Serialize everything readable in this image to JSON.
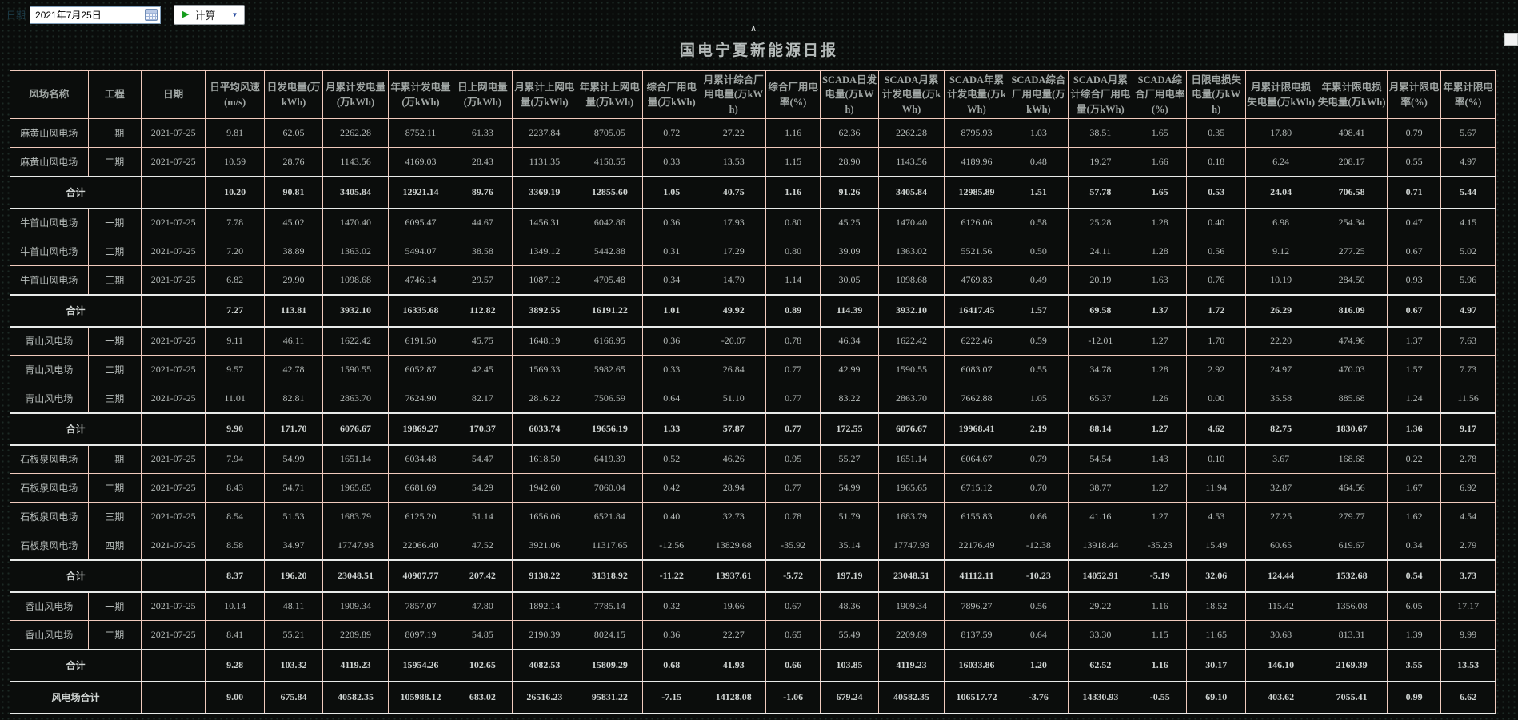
{
  "toolbar": {
    "date_label": "日期",
    "date_value": "2021年7月25日",
    "calc_label": "计算",
    "play_glyph": "▶",
    "dropdown_glyph": "▼",
    "collapse_glyph": "∧"
  },
  "title": "国电宁夏新能源日报",
  "colors": {
    "table_border": "#f0cabd",
    "subtotal_border": "#e8eae9",
    "cell_text": "#b4bab8",
    "accent_green": "#149c1c",
    "background": "#0a0c0b"
  },
  "table": {
    "columns": [
      "风场名称",
      "工程",
      "日期",
      "日平均风速(m/s)",
      "日发电量(万kWh)",
      "月累计发电量(万kWh)",
      "年累计发电量(万kWh)",
      "日上网电量(万kWh)",
      "月累计上网电量(万kWh)",
      "年累计上网电量(万kWh)",
      "综合厂用电量(万kWh)",
      "月累计综合厂用电量(万kWh)",
      "综合厂用电率(%)",
      "SCADA日发电量(万kWh)",
      "SCADA月累计发电量(万kWh)",
      "SCADA年累计发电量(万kWh)",
      "SCADA综合厂用电量(万kWh)",
      "SCADA月累计综合厂用电量(万kWh)",
      "SCADA综合厂用电率(%)",
      "日限电损失电量(万kWh)",
      "月累计限电损失电量(万kWh)",
      "年累计限电损失电量(万kWh)",
      "月累计限电率(%)",
      "年累计限电率(%)"
    ],
    "rows": [
      {
        "type": "data",
        "cells": [
          "麻黄山风电场",
          "一期",
          "2021-07-25",
          "9.81",
          "62.05",
          "2262.28",
          "8752.11",
          "61.33",
          "2237.84",
          "8705.05",
          "0.72",
          "27.22",
          "1.16",
          "62.36",
          "2262.28",
          "8795.93",
          "1.03",
          "38.51",
          "1.65",
          "0.35",
          "17.80",
          "498.41",
          "0.79",
          "5.67"
        ]
      },
      {
        "type": "data",
        "cells": [
          "麻黄山风电场",
          "二期",
          "2021-07-25",
          "10.59",
          "28.76",
          "1143.56",
          "4169.03",
          "28.43",
          "1131.35",
          "4150.55",
          "0.33",
          "13.53",
          "1.15",
          "28.90",
          "1143.56",
          "4189.96",
          "0.48",
          "19.27",
          "1.66",
          "0.18",
          "6.24",
          "208.17",
          "0.55",
          "4.97"
        ]
      },
      {
        "type": "subtotal",
        "cells": [
          "合计",
          "",
          "",
          "10.20",
          "90.81",
          "3405.84",
          "12921.14",
          "89.76",
          "3369.19",
          "12855.60",
          "1.05",
          "40.75",
          "1.16",
          "91.26",
          "3405.84",
          "12985.89",
          "1.51",
          "57.78",
          "1.65",
          "0.53",
          "24.04",
          "706.58",
          "0.71",
          "5.44"
        ]
      },
      {
        "type": "data",
        "cells": [
          "牛首山风电场",
          "一期",
          "2021-07-25",
          "7.78",
          "45.02",
          "1470.40",
          "6095.47",
          "44.67",
          "1456.31",
          "6042.86",
          "0.36",
          "17.93",
          "0.80",
          "45.25",
          "1470.40",
          "6126.06",
          "0.58",
          "25.28",
          "1.28",
          "0.40",
          "6.98",
          "254.34",
          "0.47",
          "4.15"
        ]
      },
      {
        "type": "data",
        "cells": [
          "牛首山风电场",
          "二期",
          "2021-07-25",
          "7.20",
          "38.89",
          "1363.02",
          "5494.07",
          "38.58",
          "1349.12",
          "5442.88",
          "0.31",
          "17.29",
          "0.80",
          "39.09",
          "1363.02",
          "5521.56",
          "0.50",
          "24.11",
          "1.28",
          "0.56",
          "9.12",
          "277.25",
          "0.67",
          "5.02"
        ]
      },
      {
        "type": "data",
        "cells": [
          "牛首山风电场",
          "三期",
          "2021-07-25",
          "6.82",
          "29.90",
          "1098.68",
          "4746.14",
          "29.57",
          "1087.12",
          "4705.48",
          "0.34",
          "14.70",
          "1.14",
          "30.05",
          "1098.68",
          "4769.83",
          "0.49",
          "20.19",
          "1.63",
          "0.76",
          "10.19",
          "284.50",
          "0.93",
          "5.96"
        ]
      },
      {
        "type": "subtotal",
        "cells": [
          "合计",
          "",
          "",
          "7.27",
          "113.81",
          "3932.10",
          "16335.68",
          "112.82",
          "3892.55",
          "16191.22",
          "1.01",
          "49.92",
          "0.89",
          "114.39",
          "3932.10",
          "16417.45",
          "1.57",
          "69.58",
          "1.37",
          "1.72",
          "26.29",
          "816.09",
          "0.67",
          "4.97"
        ]
      },
      {
        "type": "data",
        "cells": [
          "青山风电场",
          "一期",
          "2021-07-25",
          "9.11",
          "46.11",
          "1622.42",
          "6191.50",
          "45.75",
          "1648.19",
          "6166.95",
          "0.36",
          "-20.07",
          "0.78",
          "46.34",
          "1622.42",
          "6222.46",
          "0.59",
          "-12.01",
          "1.27",
          "1.70",
          "22.20",
          "474.96",
          "1.37",
          "7.63"
        ]
      },
      {
        "type": "data",
        "cells": [
          "青山风电场",
          "二期",
          "2021-07-25",
          "9.57",
          "42.78",
          "1590.55",
          "6052.87",
          "42.45",
          "1569.33",
          "5982.65",
          "0.33",
          "26.84",
          "0.77",
          "42.99",
          "1590.55",
          "6083.07",
          "0.55",
          "34.78",
          "1.28",
          "2.92",
          "24.97",
          "470.03",
          "1.57",
          "7.73"
        ]
      },
      {
        "type": "data",
        "cells": [
          "青山风电场",
          "三期",
          "2021-07-25",
          "11.01",
          "82.81",
          "2863.70",
          "7624.90",
          "82.17",
          "2816.22",
          "7506.59",
          "0.64",
          "51.10",
          "0.77",
          "83.22",
          "2863.70",
          "7662.88",
          "1.05",
          "65.37",
          "1.26",
          "0.00",
          "35.58",
          "885.68",
          "1.24",
          "11.56"
        ]
      },
      {
        "type": "subtotal",
        "cells": [
          "合计",
          "",
          "",
          "9.90",
          "171.70",
          "6076.67",
          "19869.27",
          "170.37",
          "6033.74",
          "19656.19",
          "1.33",
          "57.87",
          "0.77",
          "172.55",
          "6076.67",
          "19968.41",
          "2.19",
          "88.14",
          "1.27",
          "4.62",
          "82.75",
          "1830.67",
          "1.36",
          "9.17"
        ]
      },
      {
        "type": "data",
        "cells": [
          "石板泉风电场",
          "一期",
          "2021-07-25",
          "7.94",
          "54.99",
          "1651.14",
          "6034.48",
          "54.47",
          "1618.50",
          "6419.39",
          "0.52",
          "46.26",
          "0.95",
          "55.27",
          "1651.14",
          "6064.67",
          "0.79",
          "54.54",
          "1.43",
          "0.10",
          "3.67",
          "168.68",
          "0.22",
          "2.78"
        ]
      },
      {
        "type": "data",
        "cells": [
          "石板泉风电场",
          "二期",
          "2021-07-25",
          "8.43",
          "54.71",
          "1965.65",
          "6681.69",
          "54.29",
          "1942.60",
          "7060.04",
          "0.42",
          "28.94",
          "0.77",
          "54.99",
          "1965.65",
          "6715.12",
          "0.70",
          "38.77",
          "1.27",
          "11.94",
          "32.87",
          "464.56",
          "1.67",
          "6.92"
        ]
      },
      {
        "type": "data",
        "cells": [
          "石板泉风电场",
          "三期",
          "2021-07-25",
          "8.54",
          "51.53",
          "1683.79",
          "6125.20",
          "51.14",
          "1656.06",
          "6521.84",
          "0.40",
          "32.73",
          "0.78",
          "51.79",
          "1683.79",
          "6155.83",
          "0.66",
          "41.16",
          "1.27",
          "4.53",
          "27.25",
          "279.77",
          "1.62",
          "4.54"
        ]
      },
      {
        "type": "data",
        "cells": [
          "石板泉风电场",
          "四期",
          "2021-07-25",
          "8.58",
          "34.97",
          "17747.93",
          "22066.40",
          "47.52",
          "3921.06",
          "11317.65",
          "-12.56",
          "13829.68",
          "-35.92",
          "35.14",
          "17747.93",
          "22176.49",
          "-12.38",
          "13918.44",
          "-35.23",
          "15.49",
          "60.65",
          "619.67",
          "0.34",
          "2.79"
        ]
      },
      {
        "type": "subtotal",
        "cells": [
          "合计",
          "",
          "",
          "8.37",
          "196.20",
          "23048.51",
          "40907.77",
          "207.42",
          "9138.22",
          "31318.92",
          "-11.22",
          "13937.61",
          "-5.72",
          "197.19",
          "23048.51",
          "41112.11",
          "-10.23",
          "14052.91",
          "-5.19",
          "32.06",
          "124.44",
          "1532.68",
          "0.54",
          "3.73"
        ]
      },
      {
        "type": "data",
        "cells": [
          "香山风电场",
          "一期",
          "2021-07-25",
          "10.14",
          "48.11",
          "1909.34",
          "7857.07",
          "47.80",
          "1892.14",
          "7785.14",
          "0.32",
          "19.66",
          "0.67",
          "48.36",
          "1909.34",
          "7896.27",
          "0.56",
          "29.22",
          "1.16",
          "18.52",
          "115.42",
          "1356.08",
          "6.05",
          "17.17"
        ]
      },
      {
        "type": "data",
        "cells": [
          "香山风电场",
          "二期",
          "2021-07-25",
          "8.41",
          "55.21",
          "2209.89",
          "8097.19",
          "54.85",
          "2190.39",
          "8024.15",
          "0.36",
          "22.27",
          "0.65",
          "55.49",
          "2209.89",
          "8137.59",
          "0.64",
          "33.30",
          "1.15",
          "11.65",
          "30.68",
          "813.31",
          "1.39",
          "9.99"
        ]
      },
      {
        "type": "subtotal",
        "cells": [
          "合计",
          "",
          "",
          "9.28",
          "103.32",
          "4119.23",
          "15954.26",
          "102.65",
          "4082.53",
          "15809.29",
          "0.68",
          "41.93",
          "0.66",
          "103.85",
          "4119.23",
          "16033.86",
          "1.20",
          "62.52",
          "1.16",
          "30.17",
          "146.10",
          "2169.39",
          "3.55",
          "13.53"
        ]
      },
      {
        "type": "grand",
        "cells": [
          "风电场合计",
          "",
          "",
          "9.00",
          "675.84",
          "40582.35",
          "105988.12",
          "683.02",
          "26516.23",
          "95831.22",
          "-7.15",
          "14128.08",
          "-1.06",
          "679.24",
          "40582.35",
          "106517.72",
          "-3.76",
          "14330.93",
          "-0.55",
          "69.10",
          "403.62",
          "7055.41",
          "0.99",
          "6.62"
        ]
      }
    ]
  }
}
